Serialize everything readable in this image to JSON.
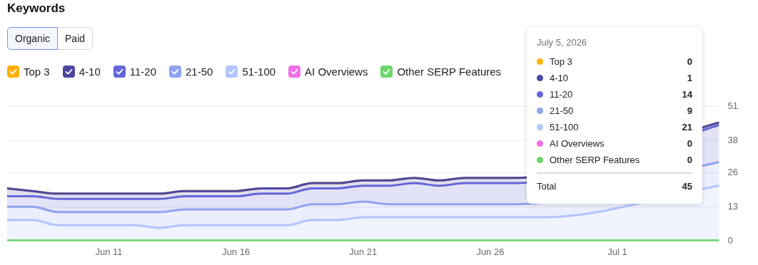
{
  "chart_data": {
    "type": "area",
    "title": "Keywords",
    "stacked": true,
    "legend": "top left",
    "grid": "y",
    "marker": "none",
    "line_style": "solid",
    "x": [
      "2026-06-07",
      "2026-06-08",
      "2026-06-09",
      "2026-06-10",
      "2026-06-11",
      "2026-06-12",
      "2026-06-13",
      "2026-06-14",
      "2026-06-15",
      "2026-06-16",
      "2026-06-17",
      "2026-06-18",
      "2026-06-19",
      "2026-06-20",
      "2026-06-21",
      "2026-06-22",
      "2026-06-23",
      "2026-06-24",
      "2026-06-25",
      "2026-06-26",
      "2026-06-27",
      "2026-06-28",
      "2026-06-29",
      "2026-06-30",
      "2026-07-01",
      "2026-07-02",
      "2026-07-03",
      "2026-07-04",
      "2026-07-05"
    ],
    "xlim": [
      "2026-06-07",
      "2026-07-05"
    ],
    "xticks": [
      {
        "value": "2026-06-11",
        "label": "Jun 11"
      },
      {
        "value": "2026-06-16",
        "label": "Jun 16"
      },
      {
        "value": "2026-06-21",
        "label": "Jun 21"
      },
      {
        "value": "2026-06-26",
        "label": "Jun 26"
      },
      {
        "value": "2026-07-01",
        "label": "Jul 1"
      }
    ],
    "ylim": [
      0,
      51
    ],
    "yticks": [
      0,
      13,
      26,
      38,
      51
    ],
    "series": [
      {
        "name": "51-100",
        "type": "area",
        "color": "#b3c4ff",
        "values": [
          8,
          8,
          6,
          6,
          6,
          6,
          5,
          6,
          6,
          6,
          6,
          6,
          8,
          8,
          9,
          9,
          9,
          9,
          9,
          9,
          9,
          9,
          null,
          null,
          null,
          null,
          null,
          null,
          21
        ]
      },
      {
        "name": "21-50",
        "type": "area",
        "color": "#8fa3f0",
        "values": [
          5,
          5,
          5,
          5,
          5,
          5,
          6,
          6,
          6,
          6,
          6,
          6,
          6,
          6,
          6,
          5,
          5,
          5,
          5,
          5,
          5,
          null,
          null,
          null,
          null,
          null,
          null,
          null,
          9
        ]
      },
      {
        "name": "11-20",
        "type": "area",
        "color": "#6366d9",
        "values": [
          4,
          4,
          5,
          5,
          5,
          5,
          5,
          5,
          5,
          5,
          6,
          6,
          6,
          6,
          6,
          7,
          8,
          7,
          8,
          8,
          8,
          null,
          null,
          null,
          null,
          null,
          null,
          null,
          14
        ]
      },
      {
        "name": "4-10",
        "type": "area",
        "color": "#4b47a3",
        "values": [
          3,
          2,
          2,
          2,
          2,
          2,
          2,
          2,
          2,
          2,
          2,
          2,
          2,
          2,
          2,
          2,
          2,
          2,
          2,
          2,
          2,
          null,
          null,
          null,
          null,
          null,
          null,
          null,
          1
        ]
      },
      {
        "name": "Top 3",
        "type": "area",
        "color": "#ffb000",
        "values": [
          0,
          0,
          0,
          0,
          0,
          0,
          0,
          0,
          0,
          0,
          0,
          0,
          0,
          0,
          0,
          0,
          0,
          0,
          0,
          0,
          0,
          null,
          null,
          null,
          null,
          null,
          null,
          null,
          0
        ]
      },
      {
        "name": "AI Overviews",
        "type": "line",
        "color": "#f36ee6",
        "values": [
          null,
          null,
          null,
          null,
          null,
          null,
          null,
          null,
          null,
          null,
          null,
          null,
          null,
          null,
          null,
          null,
          null,
          null,
          null,
          null,
          null,
          null,
          null,
          null,
          null,
          null,
          null,
          null,
          null
        ]
      },
      {
        "name": "Other SERP Features",
        "type": "line",
        "color": "#6bd66b",
        "values": [
          0,
          0,
          0,
          0,
          0,
          0,
          0,
          0,
          0,
          0,
          0,
          0,
          0,
          0,
          0,
          0,
          0,
          0,
          0,
          0,
          0,
          0,
          0,
          0,
          0,
          0,
          0,
          0,
          0
        ]
      }
    ],
    "annotations": [
      "Organic",
      "Paid",
      "July 5, 2026",
      "0",
      "1",
      "14",
      "9",
      "21",
      "0",
      "0",
      "Total",
      "45"
    ]
  }
}
